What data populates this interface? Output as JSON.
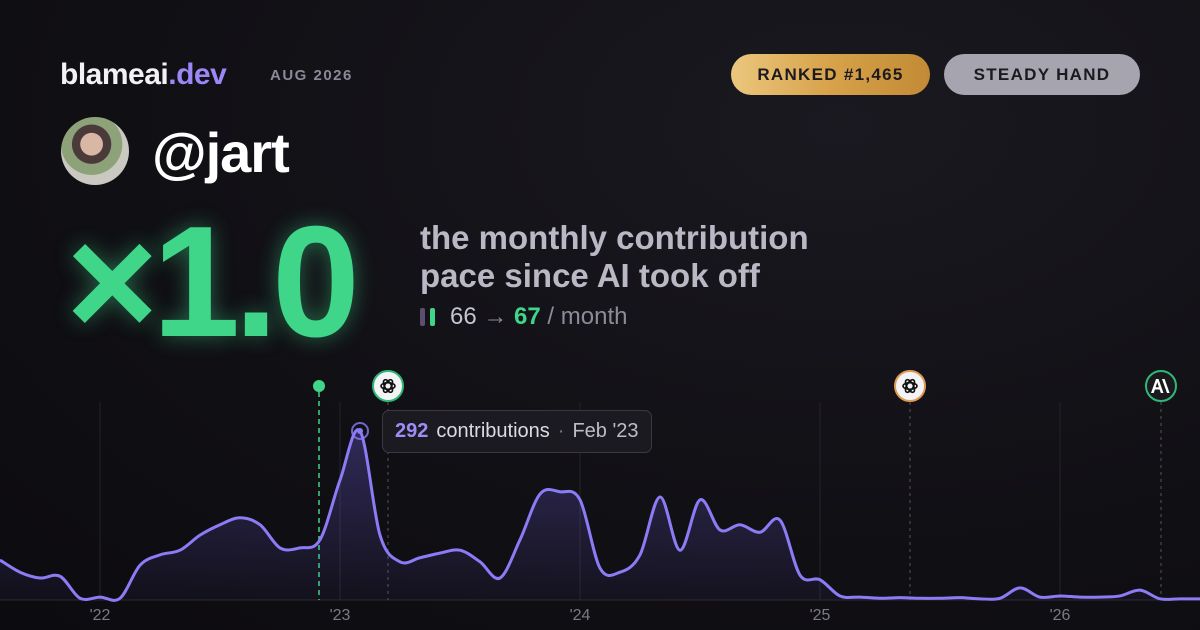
{
  "header": {
    "brand": "blameai",
    "brand_tld": ".dev",
    "period": "AUG 2026",
    "badges": [
      "RANKED #1,465",
      "STEADY HAND"
    ]
  },
  "profile": {
    "handle": "@jart"
  },
  "summary": {
    "multiplier": "×1.0",
    "description": [
      "the monthly contribution",
      "pace since AI took off"
    ],
    "before": "66",
    "arrow": "→",
    "after": "67",
    "unit": "/ month"
  },
  "chart_data": {
    "type": "area",
    "categories": [
      null,
      null,
      null,
      null,
      null,
      "'22",
      null,
      null,
      null,
      null,
      null,
      null,
      null,
      null,
      null,
      null,
      null,
      "'23",
      null,
      null,
      null,
      null,
      null,
      null,
      null,
      null,
      null,
      null,
      null,
      "'24",
      null,
      null,
      null,
      null,
      null,
      null,
      null,
      null,
      null,
      null,
      null,
      "'25",
      null,
      null,
      null,
      null,
      null,
      null,
      null,
      null,
      null,
      null,
      null,
      "'26",
      null,
      null,
      null,
      null,
      null,
      null,
      null
    ],
    "values": [
      69,
      48,
      38,
      41,
      3,
      5,
      3,
      60,
      78,
      86,
      112,
      130,
      142,
      130,
      90,
      90,
      104,
      207,
      292,
      112,
      66,
      73,
      81,
      86,
      66,
      38,
      104,
      183,
      187,
      173,
      55,
      48,
      78,
      178,
      86,
      173,
      121,
      130,
      117,
      138,
      43,
      35,
      7,
      5,
      3,
      4,
      3,
      3,
      4,
      2,
      3,
      21,
      5,
      7,
      5,
      5,
      7,
      17,
      2,
      2,
      2
    ],
    "color": "#8b7cf6",
    "ylim": [
      0,
      380
    ],
    "tooltip": {
      "label": "contributions",
      "separator": "·",
      "date": "Feb '23"
    }
  }
}
